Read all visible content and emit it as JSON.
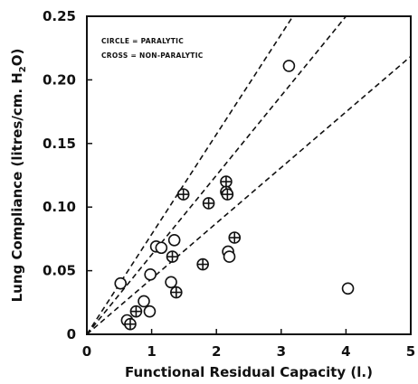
{
  "chart_data": {
    "type": "scatter",
    "title": "",
    "xlabel": "Functional Residual Capacity (l.)",
    "ylabel_parts": {
      "pre": "Lung Compliance (litres/cm. H",
      "sub": "2",
      "post": "O)"
    },
    "xlim": [
      0,
      5
    ],
    "ylim": [
      0,
      0.25
    ],
    "x_ticks": [
      0,
      1,
      2,
      3,
      4,
      5
    ],
    "x_tick_labels": [
      "0",
      "1",
      "2",
      "3",
      "4",
      "5"
    ],
    "y_ticks": [
      0,
      0.05,
      0.1,
      0.15,
      0.2,
      0.25
    ],
    "y_tick_labels": [
      "0",
      "0.05",
      "0.10",
      "0.15",
      "0.20",
      "0.25"
    ],
    "grid": false,
    "legend": {
      "placement": "top-left",
      "entries": [
        "CIRCLE = PARALYTIC",
        "CROSS = NON-PARALYTIC"
      ]
    },
    "reference_lines": [
      {
        "style": "dashed",
        "from": [
          0,
          0
        ],
        "slope": 0.0786
      },
      {
        "style": "dashed",
        "from": [
          0,
          0
        ],
        "slope": 0.0625
      },
      {
        "style": "dashed",
        "from": [
          0,
          0
        ],
        "slope": 0.0437
      }
    ],
    "series": [
      {
        "name": "CIRCLE = PARALYTIC",
        "marker": "circle",
        "points": [
          [
            0.52,
            0.04
          ],
          [
            0.62,
            0.011
          ],
          [
            0.88,
            0.026
          ],
          [
            0.97,
            0.018
          ],
          [
            0.98,
            0.047
          ],
          [
            1.07,
            0.069
          ],
          [
            1.15,
            0.068
          ],
          [
            1.3,
            0.041
          ],
          [
            1.35,
            0.074
          ],
          [
            2.18,
            0.065
          ],
          [
            2.2,
            0.061
          ],
          [
            3.12,
            0.211
          ],
          [
            4.03,
            0.036
          ]
        ]
      },
      {
        "name": "CROSS = NON-PARALYTIC",
        "marker": "circle-cross",
        "points": [
          [
            0.67,
            0.008
          ],
          [
            0.76,
            0.018
          ],
          [
            1.32,
            0.061
          ],
          [
            1.38,
            0.033
          ],
          [
            1.49,
            0.11
          ],
          [
            1.79,
            0.055
          ],
          [
            1.88,
            0.103
          ],
          [
            2.15,
            0.12
          ],
          [
            2.15,
            0.112
          ],
          [
            2.17,
            0.11
          ],
          [
            2.28,
            0.076
          ]
        ]
      }
    ]
  }
}
